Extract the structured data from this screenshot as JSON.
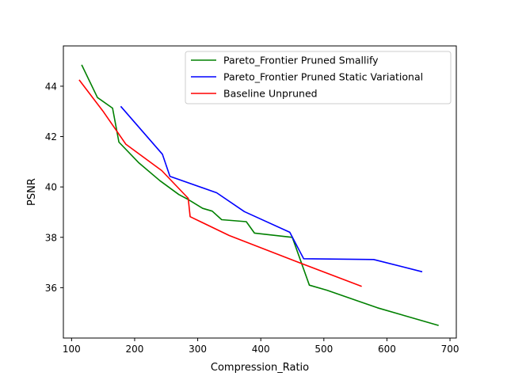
{
  "chart_data": {
    "type": "line",
    "title": "",
    "xlabel": "Compression_Ratio",
    "ylabel": "PSNR",
    "xlim": [
      87,
      710
    ],
    "ylim": [
      34.0,
      45.6
    ],
    "xticks": [
      100,
      200,
      300,
      400,
      500,
      600,
      700
    ],
    "yticks": [
      36,
      38,
      40,
      42,
      44
    ],
    "grid": false,
    "legend_position": "top-right",
    "series": [
      {
        "name": "Pareto_Frontier Pruned Smallify",
        "color": "#008000",
        "x": [
          116,
          141,
          165,
          175,
          207,
          240,
          270,
          285,
          308,
          323,
          338,
          377,
          390,
          450,
          477,
          505,
          585,
          682
        ],
        "y": [
          44.85,
          43.55,
          43.13,
          41.78,
          40.95,
          40.25,
          39.7,
          39.5,
          39.15,
          39.04,
          38.7,
          38.62,
          38.17,
          38.0,
          36.1,
          35.9,
          35.2,
          34.5
        ]
      },
      {
        "name": "Pareto_Frontier Pruned Static Variational",
        "color": "#0000ff",
        "x": [
          178,
          244,
          256,
          330,
          374,
          446,
          468,
          579,
          656
        ],
        "y": [
          43.2,
          41.3,
          40.42,
          39.77,
          39.02,
          38.2,
          37.15,
          37.12,
          36.63
        ]
      },
      {
        "name": "Baseline Unpruned",
        "color": "#ff0000",
        "x": [
          112,
          150,
          186,
          243,
          285,
          288,
          350,
          450,
          560
        ],
        "y": [
          44.25,
          43.0,
          41.7,
          40.65,
          39.55,
          38.82,
          38.07,
          37.1,
          36.05
        ]
      }
    ]
  }
}
